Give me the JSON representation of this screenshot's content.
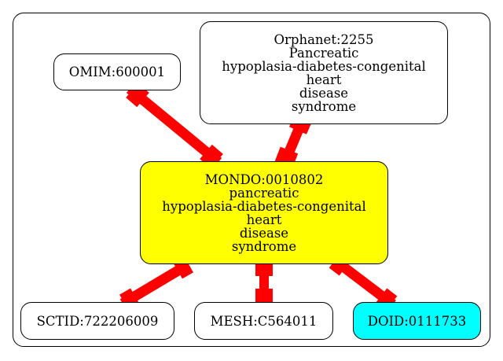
{
  "colors": {
    "edge": "#ff0000",
    "center_fill": "#ffff00",
    "doid_fill": "#00ffff",
    "default_fill": "#ffffff"
  },
  "nodes": {
    "omim": {
      "lines": [
        "OMIM:600001"
      ]
    },
    "orphanet": {
      "lines": [
        "Orphanet:2255",
        "Pancreatic",
        "hypoplasia-diabetes-congenital",
        "heart",
        "disease",
        "syndrome"
      ]
    },
    "mondo": {
      "lines": [
        "MONDO:0010802",
        "pancreatic",
        "hypoplasia-diabetes-congenital",
        "heart",
        "disease",
        "syndrome"
      ]
    },
    "sctid": {
      "lines": [
        "SCTID:722206009"
      ]
    },
    "mesh": {
      "lines": [
        "MESH:C564011"
      ]
    },
    "doid": {
      "lines": [
        "DOID:0111733"
      ]
    }
  },
  "edges": [
    {
      "from": "omim",
      "to": "mondo"
    },
    {
      "from": "orphanet",
      "to": "mondo"
    },
    {
      "from": "mondo",
      "to": "sctid"
    },
    {
      "from": "mondo",
      "to": "mesh"
    },
    {
      "from": "mondo",
      "to": "doid"
    }
  ]
}
